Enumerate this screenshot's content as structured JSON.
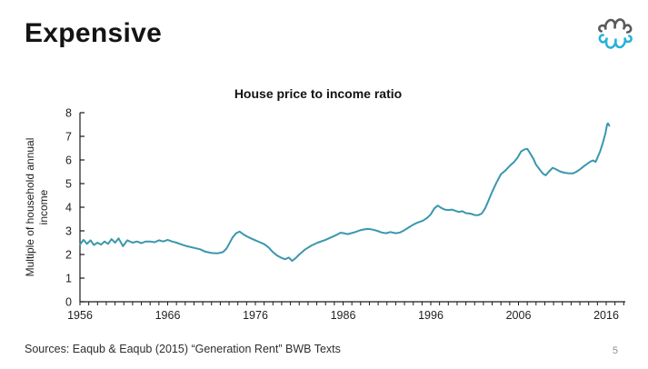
{
  "slide": {
    "title": "Expensive",
    "source_note": "Sources: Eaqub & Eaqub (2015) “Generation Rent” BWB Texts",
    "page_number": "5"
  },
  "logo": {
    "name": "brain-squiggle-logo",
    "top_color": "#58595b",
    "bottom_color": "#27b2d8"
  },
  "chart_data": {
    "type": "line",
    "title": "House price to income ratio",
    "ylabel": "Multiple of household annual income",
    "ylabel_lines": [
      "Multiple of household annual",
      "income"
    ],
    "xlabel": "",
    "grid": false,
    "legend": null,
    "line_color": "#3b97ad",
    "axis_color": "#1a1a1a",
    "xlim": [
      1956,
      2018
    ],
    "ylim": [
      0,
      8
    ],
    "y_ticks": [
      0,
      1,
      2,
      3,
      4,
      5,
      6,
      7,
      8
    ],
    "x_tick_labels": [
      1956,
      1966,
      1976,
      1986,
      1996,
      2006,
      2016
    ],
    "minor_x_ticks_every_years": 1,
    "series": [
      {
        "name": "House price to income ratio",
        "points": [
          [
            1956.0,
            2.42
          ],
          [
            1956.4,
            2.62
          ],
          [
            1956.8,
            2.45
          ],
          [
            1957.2,
            2.6
          ],
          [
            1957.6,
            2.4
          ],
          [
            1958.0,
            2.5
          ],
          [
            1958.4,
            2.42
          ],
          [
            1958.8,
            2.55
          ],
          [
            1959.2,
            2.45
          ],
          [
            1959.6,
            2.65
          ],
          [
            1960.0,
            2.5
          ],
          [
            1960.4,
            2.68
          ],
          [
            1960.9,
            2.35
          ],
          [
            1961.4,
            2.6
          ],
          [
            1962.0,
            2.5
          ],
          [
            1962.5,
            2.55
          ],
          [
            1963.0,
            2.48
          ],
          [
            1963.5,
            2.55
          ],
          [
            1964.0,
            2.55
          ],
          [
            1964.5,
            2.52
          ],
          [
            1965.0,
            2.6
          ],
          [
            1965.5,
            2.55
          ],
          [
            1966.0,
            2.62
          ],
          [
            1966.5,
            2.55
          ],
          [
            1967.0,
            2.5
          ],
          [
            1967.6,
            2.42
          ],
          [
            1968.2,
            2.35
          ],
          [
            1969.0,
            2.28
          ],
          [
            1969.7,
            2.22
          ],
          [
            1970.3,
            2.12
          ],
          [
            1971.0,
            2.06
          ],
          [
            1971.7,
            2.05
          ],
          [
            1972.3,
            2.1
          ],
          [
            1972.7,
            2.25
          ],
          [
            1973.0,
            2.45
          ],
          [
            1973.4,
            2.72
          ],
          [
            1973.8,
            2.9
          ],
          [
            1974.2,
            2.97
          ],
          [
            1974.6,
            2.86
          ],
          [
            1975.0,
            2.77
          ],
          [
            1975.5,
            2.68
          ],
          [
            1976.0,
            2.6
          ],
          [
            1976.5,
            2.52
          ],
          [
            1977.0,
            2.44
          ],
          [
            1977.5,
            2.3
          ],
          [
            1978.0,
            2.1
          ],
          [
            1978.5,
            1.95
          ],
          [
            1979.0,
            1.85
          ],
          [
            1979.4,
            1.8
          ],
          [
            1979.8,
            1.87
          ],
          [
            1980.2,
            1.73
          ],
          [
            1980.6,
            1.85
          ],
          [
            1981.0,
            2.0
          ],
          [
            1981.7,
            2.22
          ],
          [
            1982.4,
            2.38
          ],
          [
            1983.1,
            2.5
          ],
          [
            1984.0,
            2.62
          ],
          [
            1984.6,
            2.72
          ],
          [
            1985.2,
            2.82
          ],
          [
            1985.7,
            2.92
          ],
          [
            1986.1,
            2.9
          ],
          [
            1986.5,
            2.86
          ],
          [
            1986.9,
            2.9
          ],
          [
            1987.4,
            2.95
          ],
          [
            1987.9,
            3.02
          ],
          [
            1988.4,
            3.06
          ],
          [
            1988.9,
            3.08
          ],
          [
            1989.4,
            3.05
          ],
          [
            1989.9,
            3.0
          ],
          [
            1990.4,
            2.93
          ],
          [
            1990.9,
            2.9
          ],
          [
            1991.4,
            2.95
          ],
          [
            1992.0,
            2.9
          ],
          [
            1992.5,
            2.93
          ],
          [
            1993.0,
            3.03
          ],
          [
            1993.5,
            3.15
          ],
          [
            1994.0,
            3.26
          ],
          [
            1994.5,
            3.35
          ],
          [
            1995.1,
            3.43
          ],
          [
            1995.6,
            3.55
          ],
          [
            1996.0,
            3.7
          ],
          [
            1996.4,
            3.95
          ],
          [
            1996.8,
            4.07
          ],
          [
            1997.2,
            3.97
          ],
          [
            1997.6,
            3.9
          ],
          [
            1998.0,
            3.88
          ],
          [
            1998.4,
            3.9
          ],
          [
            1998.8,
            3.85
          ],
          [
            1999.2,
            3.8
          ],
          [
            1999.6,
            3.83
          ],
          [
            2000.0,
            3.75
          ],
          [
            2000.5,
            3.73
          ],
          [
            2001.0,
            3.67
          ],
          [
            2001.4,
            3.66
          ],
          [
            2001.8,
            3.73
          ],
          [
            2002.2,
            3.95
          ],
          [
            2002.6,
            4.3
          ],
          [
            2003.0,
            4.65
          ],
          [
            2003.5,
            5.05
          ],
          [
            2004.0,
            5.4
          ],
          [
            2004.5,
            5.55
          ],
          [
            2005.0,
            5.75
          ],
          [
            2005.5,
            5.92
          ],
          [
            2005.9,
            6.1
          ],
          [
            2006.3,
            6.36
          ],
          [
            2006.7,
            6.45
          ],
          [
            2007.0,
            6.47
          ],
          [
            2007.3,
            6.3
          ],
          [
            2007.7,
            6.05
          ],
          [
            2008.0,
            5.8
          ],
          [
            2008.4,
            5.6
          ],
          [
            2008.8,
            5.42
          ],
          [
            2009.1,
            5.35
          ],
          [
            2009.5,
            5.52
          ],
          [
            2009.9,
            5.67
          ],
          [
            2010.3,
            5.6
          ],
          [
            2010.7,
            5.52
          ],
          [
            2011.2,
            5.46
          ],
          [
            2011.7,
            5.44
          ],
          [
            2012.2,
            5.43
          ],
          [
            2012.6,
            5.5
          ],
          [
            2013.0,
            5.6
          ],
          [
            2013.4,
            5.72
          ],
          [
            2013.8,
            5.83
          ],
          [
            2014.2,
            5.93
          ],
          [
            2014.5,
            5.98
          ],
          [
            2014.8,
            5.92
          ],
          [
            2015.0,
            6.1
          ],
          [
            2015.3,
            6.35
          ],
          [
            2015.6,
            6.7
          ],
          [
            2015.9,
            7.1
          ],
          [
            2016.1,
            7.5
          ],
          [
            2016.2,
            7.55
          ],
          [
            2016.35,
            7.45
          ]
        ]
      }
    ]
  }
}
